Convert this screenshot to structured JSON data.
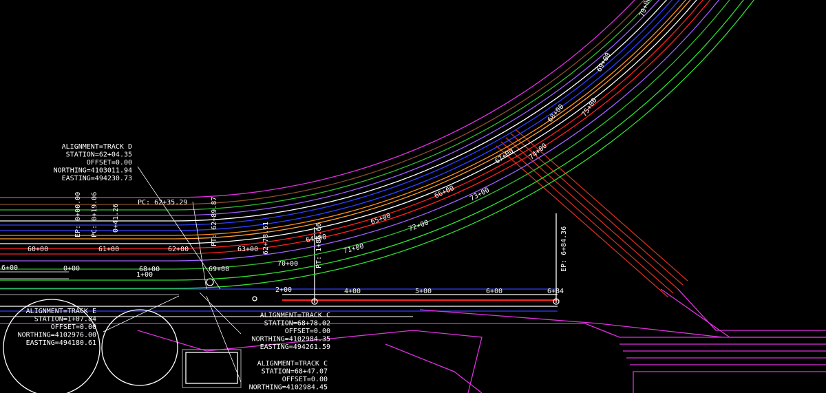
{
  "annotations": [
    {
      "lines": [
        "ALIGNMENT=TRACK D",
        "STATION=62+04.35",
        "OFFSET=0.00",
        "NORTHING=4103011.94",
        "EASTING=494230.73"
      ]
    },
    {
      "lines": [
        "ALIGNMENT=TRACK E",
        "STATION=1+07.84",
        "OFFSET=0.00",
        "NORTHING=4102976.00",
        "EASTING=494180.61"
      ]
    },
    {
      "lines": [
        "ALIGNMENT=TRACK C",
        "STATION=68+78.02",
        "OFFSET=0.00",
        "NORTHING=4102984.35",
        "EASTING=494261.59"
      ]
    },
    {
      "lines": [
        "ALIGNMENT=TRACK C",
        "STATION=68+47.07",
        "OFFSET=0.00",
        "NORTHING=4102984.45"
      ]
    }
  ],
  "labels": [
    "PC: 62+35.29",
    "EP: 6+84.36",
    "EP: 0+00.00",
    "PC: 0+19.06",
    "0+41.26",
    "PT: 62+89.87",
    "62+78.61",
    "PT: 1+86.66",
    "60+00",
    "61+00",
    "62+00",
    "63+00",
    "64+00",
    "65+00",
    "66+00",
    "67+00",
    "68+00",
    "69+00",
    "70+00",
    "71+00",
    "72+00",
    "73+00",
    "74+00",
    "75+00",
    "70+00",
    "68+00",
    "69+00",
    "0+00",
    "1+00",
    "2+00",
    "4+00",
    "5+00",
    "6+00",
    "6+84",
    "6+00"
  ]
}
